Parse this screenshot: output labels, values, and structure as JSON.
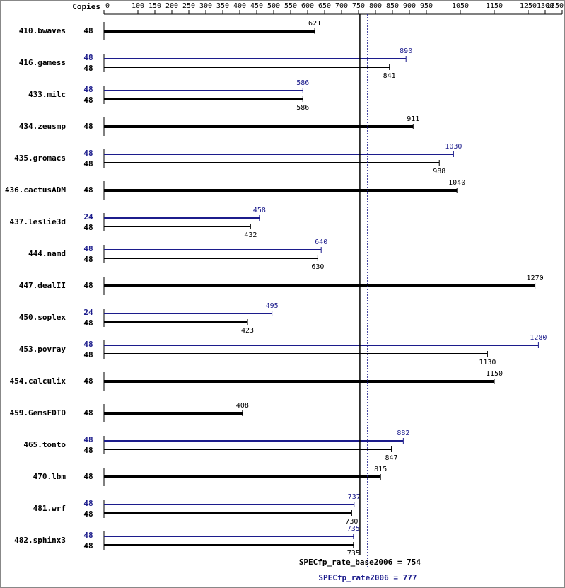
{
  "chart_data": {
    "type": "spec_bar",
    "copies_header": "Copies",
    "xlim": [
      0,
      1350
    ],
    "xticks": [
      0,
      100,
      150,
      200,
      250,
      300,
      350,
      400,
      450,
      500,
      550,
      600,
      650,
      700,
      750,
      800,
      850,
      900,
      950,
      1050,
      1150,
      1250,
      1300,
      1350
    ],
    "base_color": "#000000",
    "peak_color": "#1c1c8c",
    "benchmarks": [
      {
        "name": "410.bwaves",
        "base_copies": 48,
        "base": 621
      },
      {
        "name": "416.gamess",
        "peak_copies": 48,
        "peak": 890,
        "base_copies": 48,
        "base": 841
      },
      {
        "name": "433.milc",
        "peak_copies": 48,
        "peak": 586,
        "base_copies": 48,
        "base": 586
      },
      {
        "name": "434.zeusmp",
        "base_copies": 48,
        "base": 911
      },
      {
        "name": "435.gromacs",
        "peak_copies": 48,
        "peak": 1030,
        "base_copies": 48,
        "base": 988
      },
      {
        "name": "436.cactusADM",
        "base_copies": 48,
        "base": 1040
      },
      {
        "name": "437.leslie3d",
        "peak_copies": 24,
        "peak": 458,
        "base_copies": 48,
        "base": 432
      },
      {
        "name": "444.namd",
        "peak_copies": 48,
        "peak": 640,
        "base_copies": 48,
        "base": 630
      },
      {
        "name": "447.dealII",
        "base_copies": 48,
        "base": 1270
      },
      {
        "name": "450.soplex",
        "peak_copies": 24,
        "peak": 495,
        "base_copies": 48,
        "base": 423
      },
      {
        "name": "453.povray",
        "peak_copies": 48,
        "peak": 1280,
        "base_copies": 48,
        "base": 1130
      },
      {
        "name": "454.calculix",
        "base_copies": 48,
        "base": 1150
      },
      {
        "name": "459.GemsFDTD",
        "base_copies": 48,
        "base": 408
      },
      {
        "name": "465.tonto",
        "peak_copies": 48,
        "peak": 882,
        "base_copies": 48,
        "base": 847
      },
      {
        "name": "470.lbm",
        "base_copies": 48,
        "base": 815
      },
      {
        "name": "481.wrf",
        "peak_copies": 48,
        "peak": 737,
        "base_copies": 48,
        "base": 730
      },
      {
        "name": "482.sphinx3",
        "peak_copies": 48,
        "peak": 735,
        "base_copies": 48,
        "base": 735
      }
    ],
    "base_line": {
      "label": "SPECfp_rate_base2006 = 754",
      "value": 754
    },
    "peak_line": {
      "label": "SPECfp_rate2006 = 777",
      "value": 777
    }
  }
}
